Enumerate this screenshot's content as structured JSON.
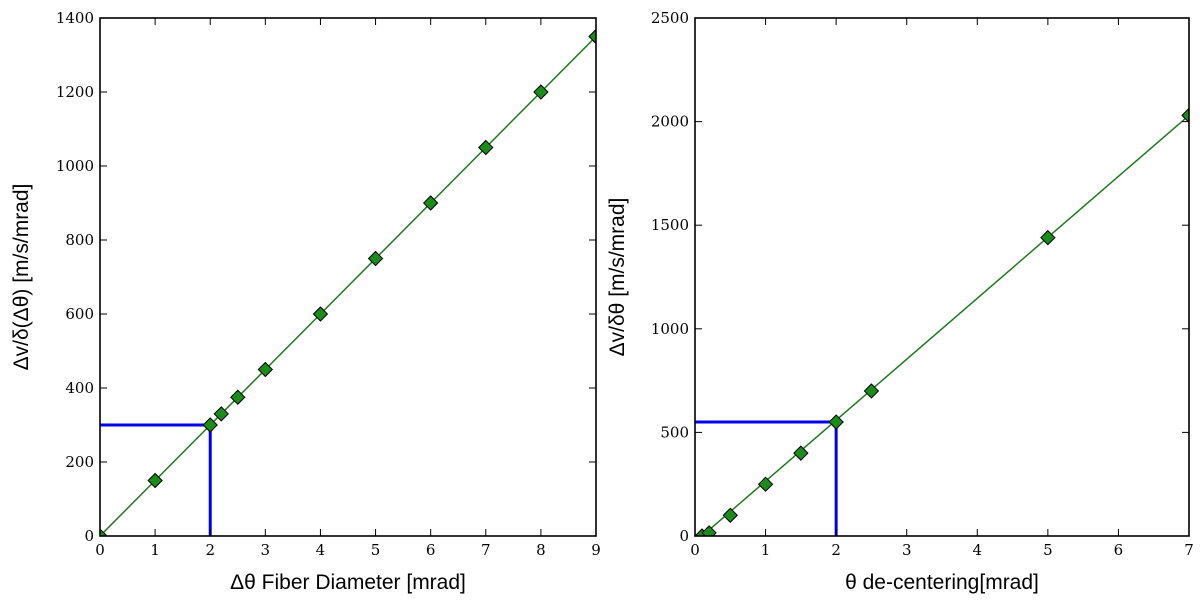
{
  "chart_data": [
    {
      "type": "line",
      "title": "",
      "xlabel": "Δθ Fiber Diameter [mrad]",
      "ylabel": "Δv/δ(Δθ) [m/s/mrad]",
      "xlim": [
        0,
        9
      ],
      "ylim": [
        0,
        1400
      ],
      "xticks": [
        0,
        1,
        2,
        3,
        4,
        5,
        6,
        7,
        8,
        9
      ],
      "yticks": [
        0,
        200,
        400,
        600,
        800,
        1000,
        1200,
        1400
      ],
      "grid": false,
      "legend": "none",
      "series": [
        {
          "kind": "fit-line",
          "color": "#1f7a1f",
          "x": [
            0,
            9
          ],
          "y": [
            0,
            1350
          ]
        },
        {
          "kind": "markers",
          "marker": "diamond",
          "color": "#1a8c1a",
          "x": [
            0,
            1,
            2,
            2.2,
            2.5,
            3,
            4,
            5,
            6,
            7,
            8,
            9
          ],
          "y": [
            0,
            150,
            300,
            330,
            375,
            450,
            600,
            750,
            900,
            1050,
            1200,
            1350
          ]
        }
      ],
      "guides": {
        "color": "#0000ee",
        "x": 2,
        "y": 300
      }
    },
    {
      "type": "line",
      "title": "",
      "xlabel": "θ de-centering[mrad]",
      "ylabel": "Δv/δθ [m/s/mrad]",
      "xlim": [
        0,
        7
      ],
      "ylim": [
        0,
        2500
      ],
      "xticks": [
        0,
        1,
        2,
        3,
        4,
        5,
        6,
        7
      ],
      "yticks": [
        0,
        500,
        1000,
        1500,
        2000,
        2500
      ],
      "grid": false,
      "legend": "none",
      "series": [
        {
          "kind": "fit-line",
          "color": "#1f7a1f",
          "x": [
            0.1,
            7
          ],
          "y": [
            0,
            2030
          ]
        },
        {
          "kind": "markers",
          "marker": "diamond",
          "color": "#1a8c1a",
          "x": [
            0.1,
            0.2,
            0.5,
            1,
            1.5,
            2,
            2.5,
            5,
            7
          ],
          "y": [
            0,
            15,
            100,
            250,
            400,
            550,
            700,
            1440,
            2030
          ]
        }
      ],
      "guides": {
        "color": "#0000ee",
        "x": 2,
        "y": 550
      }
    }
  ]
}
